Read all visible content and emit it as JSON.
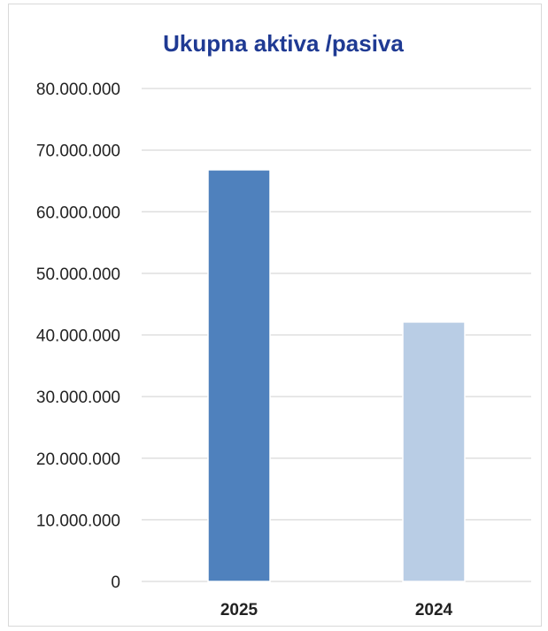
{
  "chart_data": {
    "type": "bar",
    "title": "Ukupna aktiva /pasiva",
    "xlabel": "",
    "ylabel": "",
    "categories": [
      "2025",
      "2024"
    ],
    "values": [
      66800000,
      42100000
    ],
    "ylim": [
      0,
      80000000
    ],
    "yticks": [
      0,
      10000000,
      20000000,
      30000000,
      40000000,
      50000000,
      60000000,
      70000000,
      80000000
    ],
    "ytick_labels": [
      "0",
      "10.000.000",
      "20.000.000",
      "30.000.000",
      "40.000.000",
      "50.000.000",
      "60.000.000",
      "70.000.000",
      "80.000.000"
    ],
    "bar_colors": [
      "#4f81bd",
      "#b9cde5"
    ],
    "grid": true,
    "legend": "none"
  }
}
